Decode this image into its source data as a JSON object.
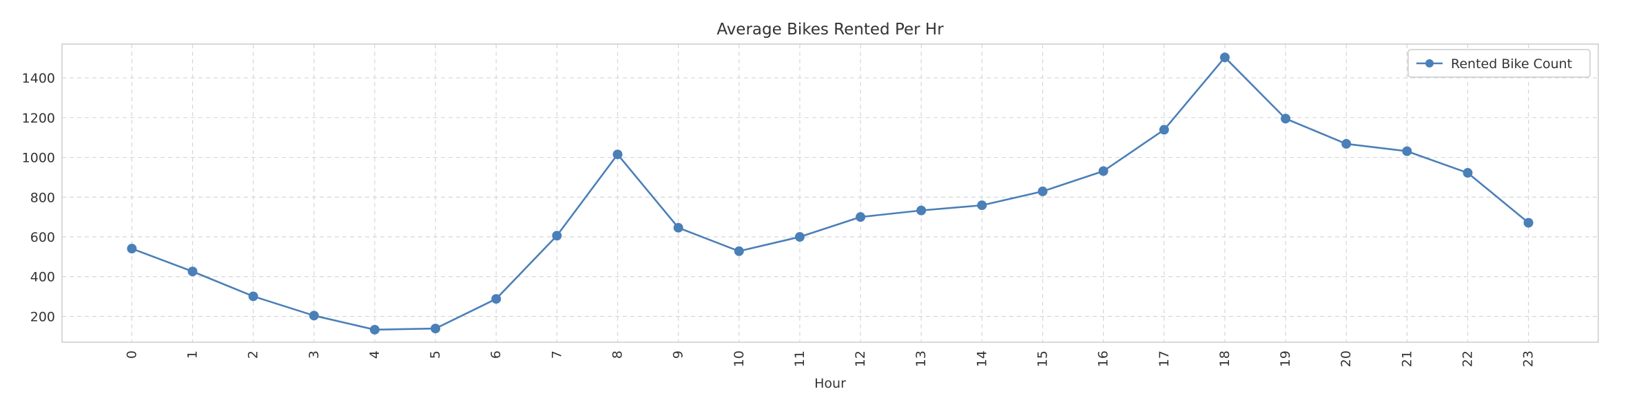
{
  "chart_data": {
    "type": "line",
    "title": "Average Bikes Rented Per Hr",
    "xlabel": "Hour",
    "ylabel": "",
    "x": [
      0,
      1,
      2,
      3,
      4,
      5,
      6,
      7,
      8,
      9,
      10,
      11,
      12,
      13,
      14,
      15,
      16,
      17,
      18,
      19,
      20,
      21,
      22,
      23
    ],
    "x_tick_labels": [
      "0",
      "1",
      "2",
      "3",
      "4",
      "5",
      "6",
      "7",
      "8",
      "9",
      "10",
      "11",
      "12",
      "13",
      "14",
      "15",
      "16",
      "17",
      "18",
      "19",
      "20",
      "21",
      "22",
      "23"
    ],
    "series": [
      {
        "name": "Rented Bike Count",
        "color": "#4a7fb8",
        "values": [
          541,
          426,
          301,
          204,
          133,
          139,
          288,
          606,
          1015,
          646,
          528,
          600,
          700,
          733,
          759,
          829,
          931,
          1139,
          1503,
          1195,
          1068,
          1031,
          922,
          671
        ]
      }
    ],
    "ylim": [
      70,
      1570
    ],
    "xlim": [
      -1.15,
      24.15
    ],
    "y_ticks": [
      200,
      400,
      600,
      800,
      1000,
      1200,
      1400
    ],
    "y_tick_labels": [
      "200",
      "400",
      "600",
      "800",
      "1000",
      "1200",
      "1400"
    ],
    "grid": true,
    "legend_position": "top-right"
  }
}
